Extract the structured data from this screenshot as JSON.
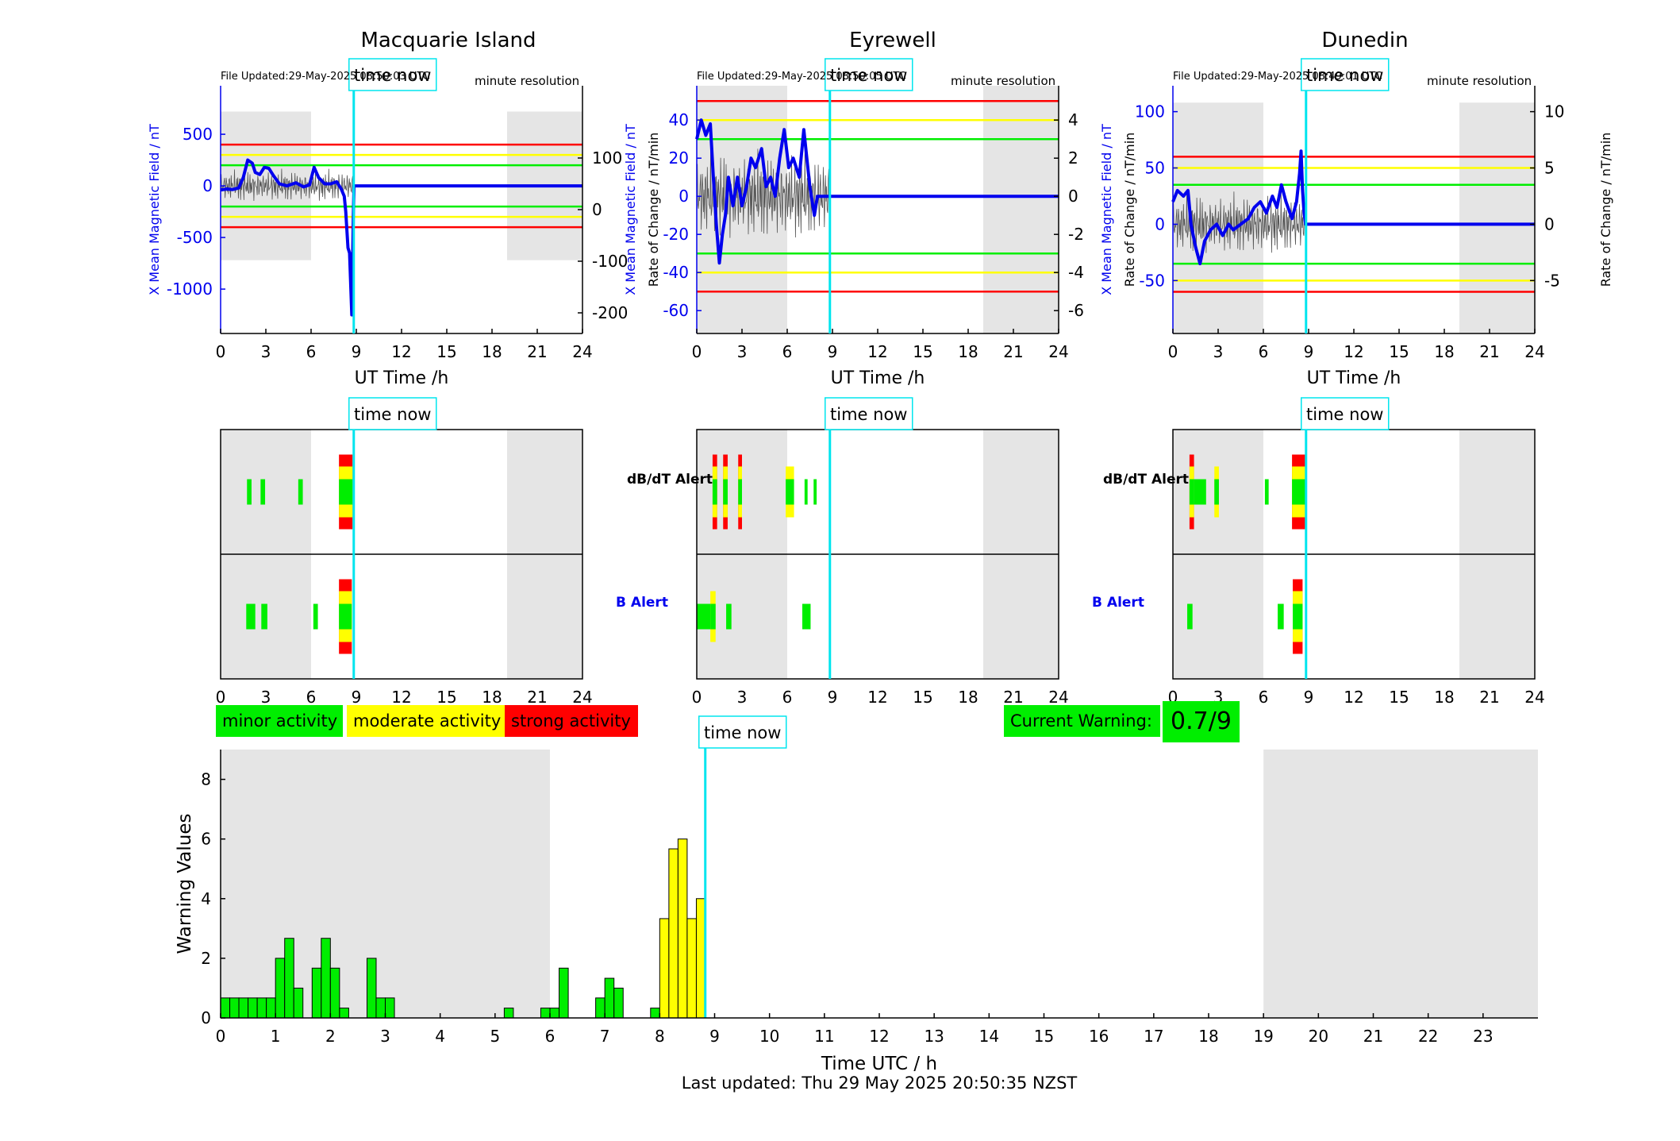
{
  "stations": [
    {
      "name": "Macquarie Island",
      "file_updated": "File Updated:29-May-2025 08:50:03 UTC",
      "resolution": "minute resolution",
      "left_axis_label": "X Mean Magnetic Field / nT",
      "right_axis_label": "Rate of Change / nT/min",
      "x_ticks": [
        0,
        3,
        6,
        9,
        12,
        15,
        18,
        21,
        24
      ],
      "x_label": "UT Time /h",
      "left_ylim": [
        -1430,
        970
      ],
      "left_ticks": [
        500,
        0,
        -500,
        -1000
      ],
      "right_ylim": [
        -240,
        240
      ],
      "right_ticks": [
        100,
        0,
        -100,
        -200
      ],
      "thresholds_nt": {
        "red": 400,
        "yellow": 300,
        "green": 200
      },
      "field_trace": [
        [
          0,
          -40
        ],
        [
          0.4,
          -30
        ],
        [
          0.8,
          -35
        ],
        [
          1.2,
          -20
        ],
        [
          1.5,
          80
        ],
        [
          1.8,
          250
        ],
        [
          2.1,
          220
        ],
        [
          2.3,
          130
        ],
        [
          2.6,
          110
        ],
        [
          2.9,
          180
        ],
        [
          3.2,
          170
        ],
        [
          3.5,
          100
        ],
        [
          3.9,
          20
        ],
        [
          4.4,
          0
        ],
        [
          5.0,
          30
        ],
        [
          5.5,
          -10
        ],
        [
          5.9,
          10
        ],
        [
          6.2,
          180
        ],
        [
          6.5,
          80
        ],
        [
          6.9,
          20
        ],
        [
          7.3,
          20
        ],
        [
          7.7,
          40
        ],
        [
          8.0,
          -30
        ],
        [
          8.2,
          -100
        ],
        [
          8.3,
          -250
        ],
        [
          8.45,
          -600
        ],
        [
          8.55,
          -650
        ],
        [
          8.7,
          -1250
        ],
        [
          8.8,
          -300
        ],
        [
          8.85,
          0
        ],
        [
          24,
          0
        ]
      ],
      "alerts": {
        "dbdt": [
          {
            "start": 1.75,
            "end": 2.05,
            "level": "green"
          },
          {
            "start": 2.65,
            "end": 2.95,
            "level": "green"
          },
          {
            "start": 5.15,
            "end": 5.45,
            "level": "green"
          },
          {
            "start": 7.85,
            "end": 8.75,
            "level": "red"
          }
        ],
        "b": [
          {
            "start": 1.7,
            "end": 2.3,
            "level": "green"
          },
          {
            "start": 2.7,
            "end": 3.1,
            "level": "green"
          },
          {
            "start": 6.15,
            "end": 6.45,
            "level": "green"
          },
          {
            "start": 7.85,
            "end": 8.7,
            "level": "red"
          }
        ]
      }
    },
    {
      "name": "Eyrewell",
      "file_updated": "File Updated:29-May-2025 08:50:05 UTC",
      "resolution": "minute resolution",
      "left_axis_label": "X Mean Magnetic Field / nT",
      "right_axis_label": "Rate of Change / nT/min",
      "x_ticks": [
        0,
        3,
        6,
        9,
        12,
        15,
        18,
        21,
        24
      ],
      "x_label": "UT Time /h",
      "left_ylim": [
        -72,
        58
      ],
      "left_ticks": [
        40,
        20,
        0,
        -20,
        -40,
        -60
      ],
      "right_ylim": [
        -7.2,
        5.8
      ],
      "right_ticks": [
        4,
        2,
        0,
        -2,
        -4,
        -6
      ],
      "thresholds_nt": {
        "red": 50,
        "yellow": 40,
        "green": 30
      },
      "field_trace": [
        [
          0,
          30
        ],
        [
          0.3,
          40
        ],
        [
          0.6,
          32
        ],
        [
          0.9,
          38
        ],
        [
          1.1,
          10
        ],
        [
          1.3,
          -15
        ],
        [
          1.5,
          -35
        ],
        [
          1.7,
          -20
        ],
        [
          1.9,
          -10
        ],
        [
          2.1,
          10
        ],
        [
          2.4,
          -5
        ],
        [
          2.7,
          10
        ],
        [
          3.0,
          -5
        ],
        [
          3.3,
          5
        ],
        [
          3.6,
          20
        ],
        [
          3.9,
          15
        ],
        [
          4.3,
          25
        ],
        [
          4.6,
          5
        ],
        [
          4.9,
          10
        ],
        [
          5.2,
          0
        ],
        [
          5.5,
          20
        ],
        [
          5.8,
          35
        ],
        [
          6.1,
          15
        ],
        [
          6.4,
          20
        ],
        [
          6.8,
          10
        ],
        [
          7.1,
          35
        ],
        [
          7.3,
          20
        ],
        [
          7.5,
          5
        ],
        [
          7.8,
          -10
        ],
        [
          8.0,
          0
        ],
        [
          24,
          0
        ]
      ],
      "alerts": {
        "dbdt": [
          {
            "start": 1.05,
            "end": 1.35,
            "level": "red"
          },
          {
            "start": 1.75,
            "end": 2.05,
            "level": "red"
          },
          {
            "start": 2.75,
            "end": 3.0,
            "level": "red"
          },
          {
            "start": 5.9,
            "end": 6.45,
            "level": "yellow"
          },
          {
            "start": 7.15,
            "end": 7.35,
            "level": "green"
          },
          {
            "start": 7.75,
            "end": 7.95,
            "level": "green"
          }
        ],
        "b": [
          {
            "start": 0,
            "end": 0.9,
            "level": "green"
          },
          {
            "start": 0.9,
            "end": 1.25,
            "level": "yellow"
          },
          {
            "start": 1.95,
            "end": 2.3,
            "level": "green"
          },
          {
            "start": 7.0,
            "end": 7.55,
            "level": "green"
          }
        ]
      }
    },
    {
      "name": "Dunedin",
      "file_updated": "File Updated:29-May-2025 08:49:01 UTC",
      "resolution": "minute resolution",
      "left_axis_label": "X Mean Magnetic Field / nT",
      "right_axis_label": "Rate of Change / nT/min",
      "x_ticks": [
        0,
        3,
        6,
        9,
        12,
        15,
        18,
        21,
        24
      ],
      "x_label": "UT Time /h",
      "left_ylim": [
        -97,
        123
      ],
      "left_ticks": [
        100,
        50,
        0,
        -50
      ],
      "right_ylim": [
        -9.7,
        12.3
      ],
      "right_ticks": [
        10,
        5,
        0,
        -5
      ],
      "thresholds_nt": {
        "red": 60,
        "yellow": 50,
        "green": 35
      },
      "field_trace": [
        [
          0,
          20
        ],
        [
          0.3,
          30
        ],
        [
          0.7,
          25
        ],
        [
          1.0,
          30
        ],
        [
          1.2,
          0
        ],
        [
          1.5,
          -20
        ],
        [
          1.8,
          -35
        ],
        [
          2.1,
          -15
        ],
        [
          2.5,
          -5
        ],
        [
          2.9,
          0
        ],
        [
          3.3,
          -10
        ],
        [
          3.7,
          0
        ],
        [
          4.0,
          -5
        ],
        [
          4.5,
          0
        ],
        [
          5.0,
          5
        ],
        [
          5.4,
          15
        ],
        [
          5.8,
          20
        ],
        [
          6.2,
          10
        ],
        [
          6.6,
          25
        ],
        [
          6.9,
          15
        ],
        [
          7.2,
          35
        ],
        [
          7.5,
          20
        ],
        [
          7.9,
          5
        ],
        [
          8.2,
          20
        ],
        [
          8.4,
          45
        ],
        [
          8.5,
          65
        ],
        [
          8.6,
          30
        ],
        [
          8.7,
          10
        ],
        [
          8.8,
          0
        ],
        [
          24,
          0
        ]
      ],
      "alerts": {
        "dbdt": [
          {
            "start": 1.1,
            "end": 1.4,
            "level": "red"
          },
          {
            "start": 1.4,
            "end": 2.2,
            "level": "green"
          },
          {
            "start": 2.75,
            "end": 3.05,
            "level": "yellow"
          },
          {
            "start": 6.1,
            "end": 6.35,
            "level": "green"
          },
          {
            "start": 7.9,
            "end": 8.85,
            "level": "red"
          }
        ],
        "b": [
          {
            "start": 0.95,
            "end": 1.3,
            "level": "green"
          },
          {
            "start": 6.95,
            "end": 7.35,
            "level": "green"
          },
          {
            "start": 7.95,
            "end": 8.6,
            "level": "red"
          }
        ]
      }
    }
  ],
  "time_now_label": "time now",
  "time_now_hours": 8.83,
  "night_bands_hours": [
    [
      0,
      6
    ],
    [
      19,
      24
    ]
  ],
  "alert_labels": {
    "dbdt": "dB/dT Alert",
    "b": "B Alert"
  },
  "legend": {
    "minor": "minor activity",
    "moderate": "moderate activity",
    "strong": "strong activity"
  },
  "current_warning": {
    "label": "Current Warning:",
    "value": "0.7/9"
  },
  "chart_data": {
    "type": "bar",
    "title": "",
    "xlabel": "Time UTC / h",
    "ylabel": "Warning Values",
    "xlim": [
      0,
      24
    ],
    "ylim": [
      0,
      9
    ],
    "x_ticks": [
      0,
      1,
      2,
      3,
      4,
      5,
      6,
      7,
      8,
      9,
      10,
      11,
      12,
      13,
      14,
      15,
      16,
      17,
      18,
      19,
      20,
      21,
      22,
      23
    ],
    "y_ticks": [
      0,
      2,
      4,
      6,
      8
    ],
    "bin_width_h": 0.1667,
    "bars": [
      {
        "t": 0.0,
        "v": 0.67
      },
      {
        "t": 0.167,
        "v": 0.67
      },
      {
        "t": 0.333,
        "v": 0.67
      },
      {
        "t": 0.5,
        "v": 0.67
      },
      {
        "t": 0.667,
        "v": 0.67
      },
      {
        "t": 0.833,
        "v": 0.67
      },
      {
        "t": 1.0,
        "v": 2.0
      },
      {
        "t": 1.167,
        "v": 2.67
      },
      {
        "t": 1.333,
        "v": 1.0
      },
      {
        "t": 1.667,
        "v": 1.67
      },
      {
        "t": 1.833,
        "v": 2.67
      },
      {
        "t": 2.0,
        "v": 1.67
      },
      {
        "t": 2.167,
        "v": 0.33
      },
      {
        "t": 2.667,
        "v": 2.0
      },
      {
        "t": 2.833,
        "v": 0.67
      },
      {
        "t": 3.0,
        "v": 0.67
      },
      {
        "t": 5.167,
        "v": 0.33
      },
      {
        "t": 5.833,
        "v": 0.33
      },
      {
        "t": 6.0,
        "v": 0.33
      },
      {
        "t": 6.167,
        "v": 1.67
      },
      {
        "t": 6.833,
        "v": 0.67
      },
      {
        "t": 7.0,
        "v": 1.33
      },
      {
        "t": 7.167,
        "v": 1.0
      },
      {
        "t": 7.833,
        "v": 0.33
      },
      {
        "t": 8.0,
        "v": 3.33
      },
      {
        "t": 8.167,
        "v": 5.67
      },
      {
        "t": 8.333,
        "v": 6.0
      },
      {
        "t": 8.5,
        "v": 3.33
      },
      {
        "t": 8.667,
        "v": 4.0
      }
    ],
    "moderate_threshold": 3
  },
  "last_updated": "Last updated: Thu 29 May 2025 20:50:35 NZST",
  "colors": {
    "green": "#00ee00",
    "yellow": "#ffff00",
    "red": "#ff0000",
    "blue": "#0000ee",
    "night": "#e5e5e5",
    "time_now": "#00e5ee",
    "trace": "#555555"
  }
}
